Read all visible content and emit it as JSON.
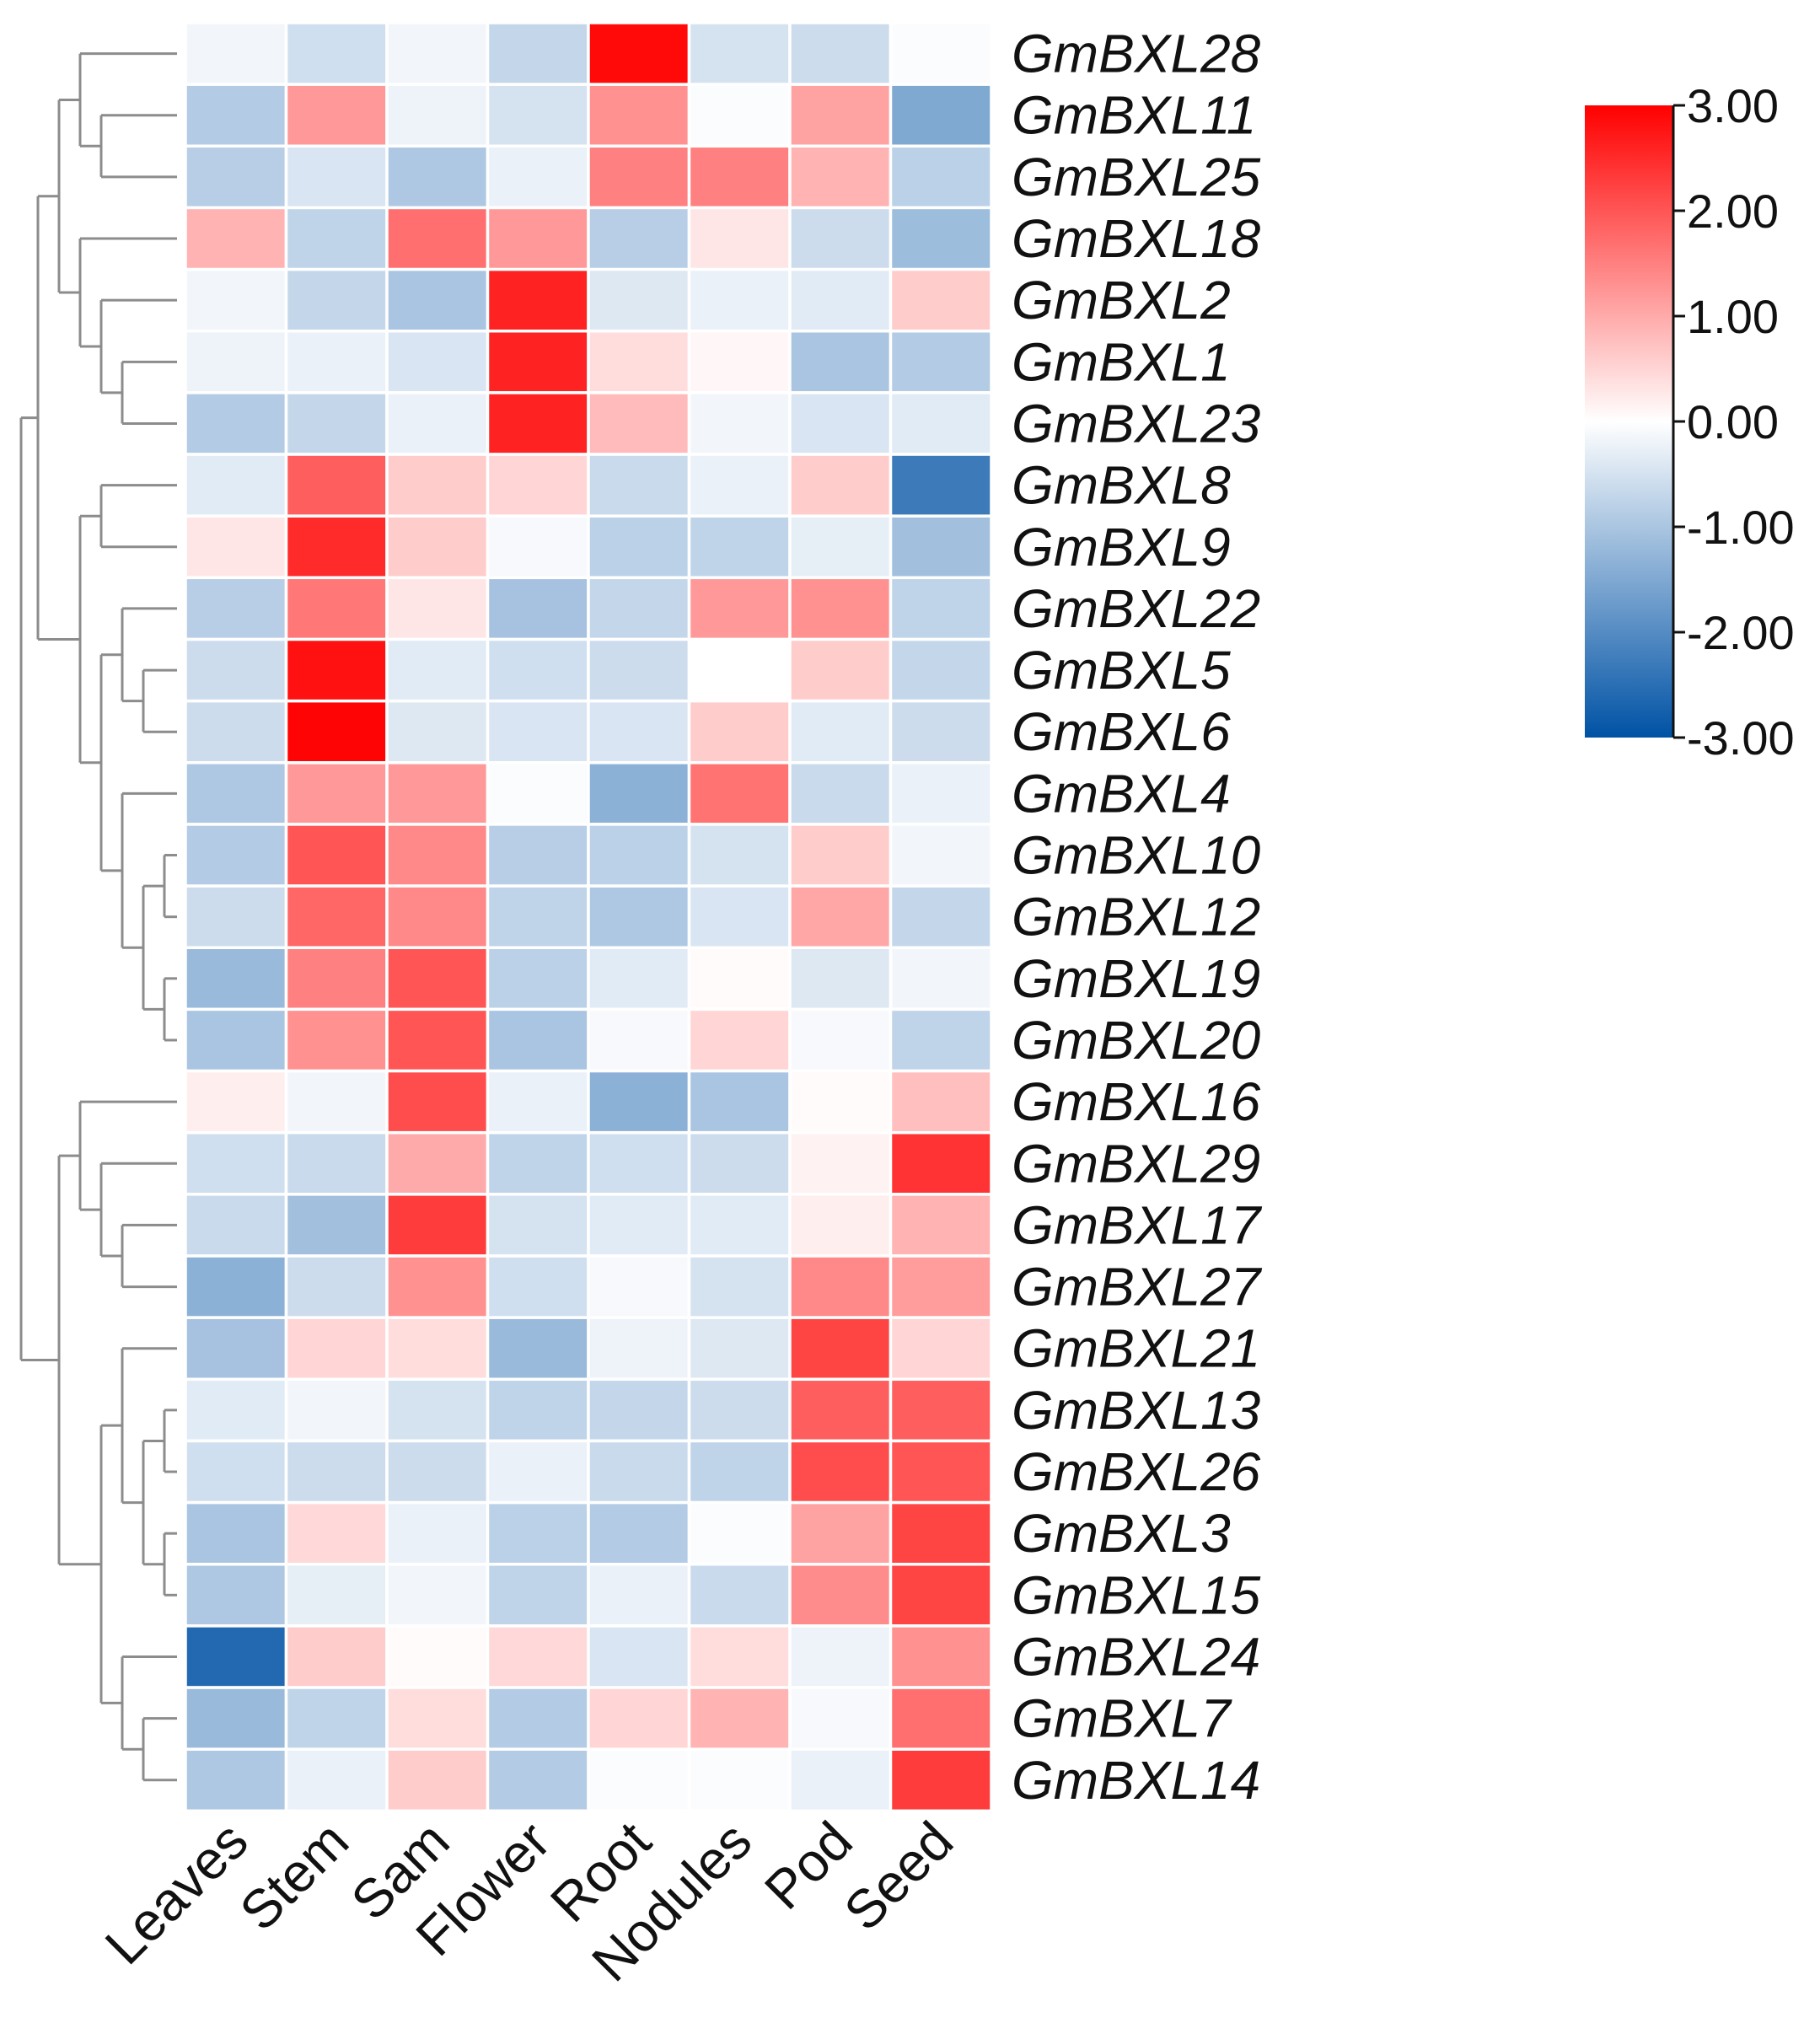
{
  "chart_data": {
    "type": "heatmap",
    "title": "",
    "columns": [
      "Leaves",
      "Stem",
      "Sam",
      "Flower",
      "Root",
      "Nodules",
      "Pod",
      "Seed"
    ],
    "rows": [
      "GmBXL28",
      "GmBXL11",
      "GmBXL25",
      "GmBXL18",
      "GmBXL2",
      "GmBXL1",
      "GmBXL23",
      "GmBXL8",
      "GmBXL9",
      "GmBXL22",
      "GmBXL5",
      "GmBXL6",
      "GmBXL4",
      "GmBXL10",
      "GmBXL12",
      "GmBXL19",
      "GmBXL20",
      "GmBXL16",
      "GmBXL29",
      "GmBXL17",
      "GmBXL27",
      "GmBXL21",
      "GmBXL13",
      "GmBXL26",
      "GmBXL3",
      "GmBXL15",
      "GmBXL24",
      "GmBXL7",
      "GmBXL14"
    ],
    "values": [
      [
        -0.15,
        -0.55,
        -0.15,
        -0.7,
        2.9,
        -0.5,
        -0.6,
        -0.05
      ],
      [
        -0.9,
        1.2,
        -0.2,
        -0.5,
        1.3,
        -0.05,
        1.1,
        -1.5
      ],
      [
        -0.85,
        -0.45,
        -0.95,
        -0.25,
        1.5,
        1.5,
        0.9,
        -0.8
      ],
      [
        0.9,
        -0.75,
        1.7,
        1.2,
        -0.85,
        0.3,
        -0.6,
        -1.15
      ],
      [
        -0.15,
        -0.7,
        -1.0,
        2.6,
        -0.4,
        -0.25,
        -0.35,
        0.6
      ],
      [
        -0.2,
        -0.25,
        -0.45,
        2.6,
        0.4,
        0.1,
        -1.0,
        -0.9
      ],
      [
        -0.9,
        -0.7,
        -0.25,
        2.6,
        0.8,
        -0.15,
        -0.45,
        -0.35
      ],
      [
        -0.35,
        1.9,
        0.6,
        0.5,
        -0.65,
        -0.25,
        0.6,
        -2.3
      ],
      [
        0.3,
        2.5,
        0.6,
        -0.1,
        -0.8,
        -0.75,
        -0.3,
        -1.1
      ],
      [
        -0.85,
        1.6,
        0.3,
        -1.05,
        -0.7,
        1.2,
        1.3,
        -0.75
      ],
      [
        -0.6,
        2.8,
        -0.35,
        -0.55,
        -0.6,
        0.0,
        0.6,
        -0.7
      ],
      [
        -0.6,
        2.95,
        -0.4,
        -0.45,
        -0.45,
        0.6,
        -0.35,
        -0.6
      ],
      [
        -0.95,
        1.2,
        1.2,
        -0.05,
        -1.35,
        1.65,
        -0.65,
        -0.25
      ],
      [
        -0.9,
        2.0,
        1.4,
        -0.85,
        -0.8,
        -0.5,
        0.6,
        -0.15
      ],
      [
        -0.6,
        1.8,
        1.4,
        -0.75,
        -0.95,
        -0.45,
        1.05,
        -0.7
      ],
      [
        -1.2,
        1.5,
        2.0,
        -0.8,
        -0.35,
        0.05,
        -0.4,
        -0.15
      ],
      [
        -1.0,
        1.3,
        2.0,
        -1.0,
        -0.1,
        0.5,
        -0.1,
        -0.75
      ],
      [
        0.2,
        -0.15,
        2.1,
        -0.25,
        -1.35,
        -1.0,
        0.05,
        0.75
      ],
      [
        -0.55,
        -0.65,
        1.0,
        -0.75,
        -0.55,
        -0.6,
        0.15,
        2.4
      ],
      [
        -0.65,
        -1.1,
        2.3,
        -0.5,
        -0.35,
        -0.35,
        0.2,
        0.9
      ],
      [
        -1.35,
        -0.6,
        1.3,
        -0.55,
        -0.1,
        -0.5,
        1.4,
        1.15
      ],
      [
        -1.05,
        0.5,
        0.4,
        -1.2,
        -0.2,
        -0.4,
        2.2,
        0.5
      ],
      [
        -0.35,
        -0.15,
        -0.5,
        -0.75,
        -0.7,
        -0.6,
        1.9,
        1.9
      ],
      [
        -0.55,
        -0.6,
        -0.6,
        -0.25,
        -0.65,
        -0.75,
        2.1,
        2.0
      ],
      [
        -1.0,
        0.45,
        -0.25,
        -0.8,
        -0.9,
        -0.05,
        1.1,
        2.2
      ],
      [
        -0.95,
        -0.3,
        -0.15,
        -0.75,
        -0.25,
        -0.65,
        1.35,
        2.2
      ],
      [
        -2.6,
        0.6,
        0.05,
        0.45,
        -0.45,
        0.4,
        -0.2,
        1.3
      ],
      [
        -1.2,
        -0.75,
        0.4,
        -0.9,
        0.5,
        0.9,
        -0.1,
        1.7
      ],
      [
        -0.95,
        -0.25,
        0.6,
        -0.9,
        -0.05,
        -0.05,
        -0.25,
        2.3
      ]
    ],
    "colorbar": {
      "min": -3,
      "max": 3,
      "ticks": [
        3,
        2,
        1,
        0,
        -1,
        -2,
        -3
      ],
      "tick_labels": [
        "3.00",
        "2.00",
        "1.00",
        "0.00",
        "-1.00",
        "-2.00",
        "-3.00"
      ],
      "low_color": "#0052A5",
      "mid_color": "#FFFFFF",
      "high_color": "#FF0000"
    },
    "legend_position": "top-right",
    "dendrogram": "rows, left side",
    "dendrogram_color": "#8c8c8c",
    "cell_border_color": "#FFFFFF"
  }
}
